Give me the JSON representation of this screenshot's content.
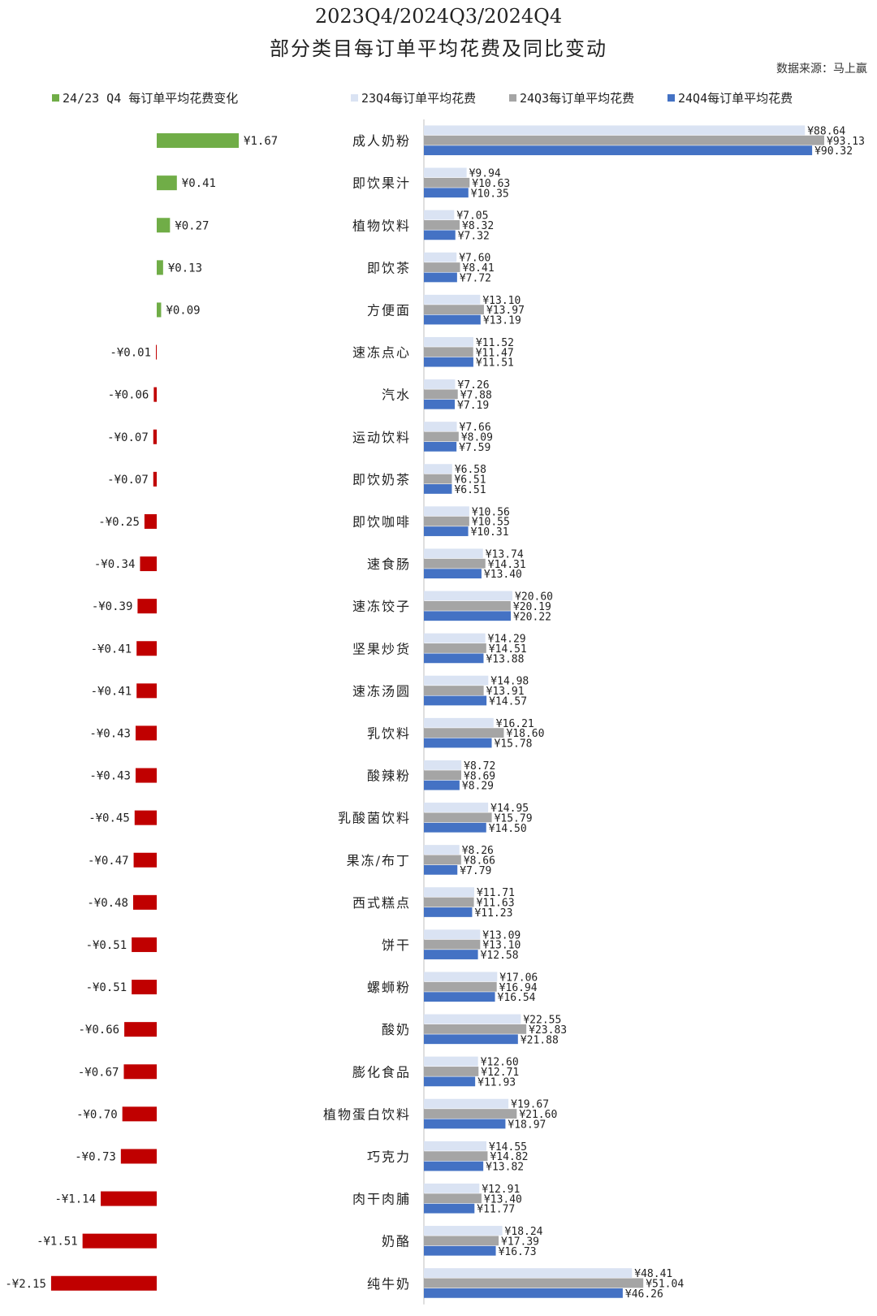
{
  "chart_data": {
    "type": "bar",
    "title": "2023Q4/2024Q3/2024Q4",
    "subtitle": "部分类目每订单平均花费及同比变动",
    "source": "数据来源：马上赢",
    "categories": [
      "成人奶粉",
      "即饮果汁",
      "植物饮料",
      "即饮茶",
      "方便面",
      "速冻点心",
      "汽水",
      "运动饮料",
      "即饮奶茶",
      "即饮咖啡",
      "速食肠",
      "速冻饺子",
      "坚果炒货",
      "速冻汤圆",
      "乳饮料",
      "酸辣粉",
      "乳酸菌饮料",
      "果冻/布丁",
      "西式糕点",
      "饼干",
      "螺蛳粉",
      "酸奶",
      "膨化食品",
      "植物蛋白饮料",
      "巧克力",
      "肉干肉脯",
      "奶酪",
      "纯牛奶"
    ],
    "change": {
      "name": "24/23 Q4 每订单平均花费变化",
      "values": [
        1.67,
        0.41,
        0.27,
        0.13,
        0.09,
        -0.01,
        -0.06,
        -0.07,
        -0.07,
        -0.25,
        -0.34,
        -0.39,
        -0.41,
        -0.41,
        -0.43,
        -0.43,
        -0.45,
        -0.47,
        -0.48,
        -0.51,
        -0.51,
        -0.66,
        -0.67,
        -0.7,
        -0.73,
        -1.14,
        -1.51,
        -2.15
      ],
      "labels": [
        "¥1.67",
        "¥0.41",
        "¥0.27",
        "¥0.13",
        "¥0.09",
        "-¥0.01",
        "-¥0.06",
        "-¥0.07",
        "-¥0.07",
        "-¥0.25",
        "-¥0.34",
        "-¥0.39",
        "-¥0.41",
        "-¥0.41",
        "-¥0.43",
        "-¥0.43",
        "-¥0.45",
        "-¥0.47",
        "-¥0.48",
        "-¥0.51",
        "-¥0.51",
        "-¥0.66",
        "-¥0.67",
        "-¥0.70",
        "-¥0.73",
        "-¥1.14",
        "-¥1.51",
        "-¥2.15"
      ],
      "color_pos": "#70ad47",
      "color_neg": "#c00000"
    },
    "series": [
      {
        "name": "23Q4每订单平均花费",
        "color": "#dae3f3",
        "values": [
          88.64,
          9.94,
          7.05,
          7.6,
          13.1,
          11.52,
          7.26,
          7.66,
          6.58,
          10.56,
          13.74,
          20.6,
          14.29,
          14.98,
          16.21,
          8.72,
          14.95,
          8.26,
          11.71,
          13.09,
          17.06,
          22.55,
          12.6,
          19.67,
          14.55,
          12.91,
          18.24,
          48.41
        ],
        "labels": [
          "¥88.64",
          "¥9.94",
          "¥7.05",
          "¥7.60",
          "¥13.10",
          "¥11.52",
          "¥7.26",
          "¥7.66",
          "¥6.58",
          "¥10.56",
          "¥13.74",
          "¥20.60",
          "¥14.29",
          "¥14.98",
          "¥16.21",
          "¥8.72",
          "¥14.95",
          "¥8.26",
          "¥11.71",
          "¥13.09",
          "¥17.06",
          "¥22.55",
          "¥12.60",
          "¥19.67",
          "¥14.55",
          "¥12.91",
          "¥18.24",
          "¥48.41"
        ]
      },
      {
        "name": "24Q3每订单平均花费",
        "color": "#a5a5a5",
        "values": [
          93.13,
          10.63,
          8.32,
          8.41,
          13.97,
          11.47,
          7.88,
          8.09,
          6.51,
          10.55,
          14.31,
          20.19,
          14.51,
          13.91,
          18.6,
          8.69,
          15.79,
          8.66,
          11.63,
          13.1,
          16.94,
          23.83,
          12.71,
          21.6,
          14.82,
          13.4,
          17.39,
          51.04
        ],
        "labels": [
          "¥93.13",
          "¥10.63",
          "¥8.32",
          "¥8.41",
          "¥13.97",
          "¥11.47",
          "¥7.88",
          "¥8.09",
          "¥6.51",
          "¥10.55",
          "¥14.31",
          "¥20.19",
          "¥14.51",
          "¥13.91",
          "¥18.60",
          "¥8.69",
          "¥15.79",
          "¥8.66",
          "¥11.63",
          "¥13.10",
          "¥16.94",
          "¥23.83",
          "¥12.71",
          "¥21.60",
          "¥14.82",
          "¥13.40",
          "¥17.39",
          "¥51.04"
        ]
      },
      {
        "name": "24Q4每订单平均花费",
        "color": "#4472c4",
        "values": [
          90.32,
          10.35,
          7.32,
          7.72,
          13.19,
          11.51,
          7.19,
          7.59,
          6.51,
          10.31,
          13.4,
          20.22,
          13.88,
          14.57,
          15.78,
          8.29,
          14.5,
          7.79,
          11.23,
          12.58,
          16.54,
          21.88,
          11.93,
          18.97,
          13.82,
          11.77,
          16.73,
          46.26
        ],
        "labels": [
          "¥90.32",
          "¥10.35",
          "¥7.32",
          "¥7.72",
          "¥13.19",
          "¥11.51",
          "¥7.19",
          "¥7.59",
          "¥6.51",
          "¥10.31",
          "¥13.40",
          "¥20.22",
          "¥13.88",
          "¥14.57",
          "¥15.78",
          "¥8.29",
          "¥14.50",
          "¥7.79",
          "¥11.23",
          "¥12.58",
          "¥16.54",
          "¥21.88",
          "¥11.93",
          "¥18.97",
          "¥13.82",
          "¥11.77",
          "¥16.73",
          "¥46.26"
        ]
      }
    ],
    "xlim_right": [
      0,
      93.13
    ],
    "legend_position": "top",
    "grid": false
  }
}
